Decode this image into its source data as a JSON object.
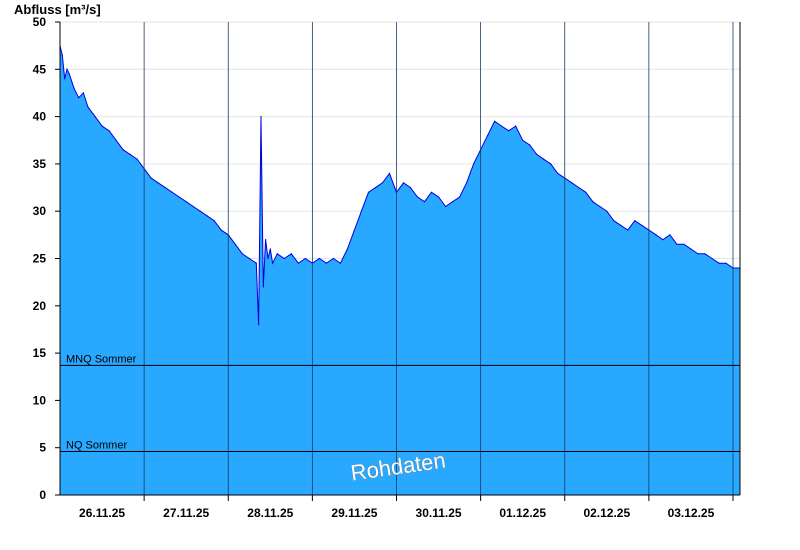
{
  "chart_data": {
    "type": "area",
    "ylabel": "Abfluss [m³/s]",
    "ylim": [
      0,
      50
    ],
    "yticks": [
      0,
      5,
      10,
      15,
      20,
      25,
      30,
      35,
      40,
      45,
      50
    ],
    "xlim": [
      "2025-11-25 12:00",
      "2025-12-03 24:00"
    ],
    "xtick_labels": [
      "26.11.25",
      "27.11.25",
      "28.11.25",
      "29.11.25",
      "30.11.25",
      "01.12.25",
      "02.12.25",
      "03.12.25"
    ],
    "grid": true,
    "fill_color": "#29a8ff",
    "line_color": "#0000dd",
    "reference_lines": [
      {
        "label": "MNQ Sommer",
        "value": 13.7,
        "color": "#000000"
      },
      {
        "label": "NQ Sommer",
        "value": 4.6,
        "color": "#000000"
      }
    ],
    "watermark": "Rohdaten",
    "series": [
      {
        "x_hours_from": "2025-11-25 12:00",
        "x": [
          0,
          1,
          2,
          3,
          4,
          6,
          8,
          10,
          12,
          15,
          18,
          21,
          24,
          27,
          30,
          33,
          36,
          39,
          42,
          45,
          48,
          51,
          54,
          57,
          60,
          63,
          66,
          69,
          72,
          75,
          78,
          81,
          84,
          85,
          86,
          87,
          88,
          89,
          90,
          91,
          93,
          96,
          99,
          102,
          105,
          108,
          111,
          114,
          117,
          120,
          123,
          126,
          129,
          132,
          135,
          138,
          141,
          144,
          147,
          150,
          153,
          156,
          159,
          162,
          165,
          168,
          171,
          174,
          177,
          180,
          183,
          186,
          189,
          192,
          195,
          198,
          201,
          204,
          207,
          210,
          213,
          216,
          219,
          222,
          225,
          228,
          231,
          234,
          237,
          240,
          243,
          246,
          249,
          252,
          255,
          258,
          261,
          264,
          267,
          270,
          273,
          276,
          279,
          282,
          285,
          288,
          291
        ],
        "y": [
          47.5,
          46.5,
          44,
          45,
          44.5,
          43,
          42,
          42.5,
          41,
          40,
          39,
          38.5,
          37.5,
          36.5,
          36,
          35.5,
          34.5,
          33.5,
          33,
          32.5,
          32,
          31.5,
          31,
          30.5,
          30,
          29.5,
          29,
          28,
          27.5,
          26.5,
          25.5,
          25,
          24.5,
          18,
          40,
          22,
          27,
          25,
          26,
          24.5,
          25.5,
          25,
          25.5,
          24.5,
          25,
          24.5,
          25,
          24.5,
          25,
          24.5,
          26,
          28,
          30,
          32,
          32.5,
          33,
          34,
          32,
          33,
          32.5,
          31.5,
          31,
          32,
          31.5,
          30.5,
          31,
          31.5,
          33,
          35,
          36.5,
          38,
          39.5,
          39,
          38.5,
          39,
          37.5,
          37,
          36,
          35.5,
          35,
          34,
          33.5,
          33,
          32.5,
          32,
          31,
          30.5,
          30,
          29,
          28.5,
          28,
          29,
          28.5,
          28,
          27.5,
          27,
          27.5,
          26.5,
          26.5,
          26,
          25.5,
          25.5,
          25,
          24.5,
          24.5,
          24,
          24
        ]
      }
    ]
  }
}
